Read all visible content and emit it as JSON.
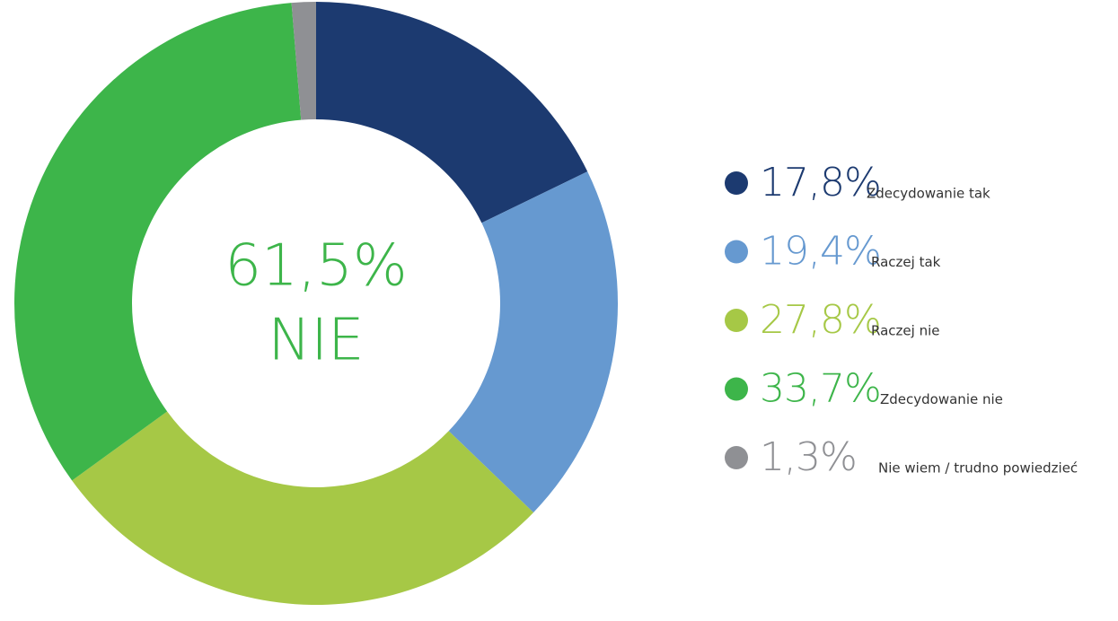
{
  "chart_data": {
    "type": "donut",
    "center_value_label": "61,5%",
    "center_label": "NIE",
    "categories": [
      "Zdecydowanie tak",
      "Raczej tak",
      "Raczej nie",
      "Zdecydowanie nie",
      "Nie wiem / trudno powiedzieć"
    ],
    "values": [
      17.8,
      19.4,
      27.8,
      33.7,
      1.3
    ],
    "value_labels": [
      "17,8%",
      "19,4%",
      "27,8%",
      "33,7%",
      "1,3%"
    ],
    "colors": [
      "#1c3a70",
      "#6699d0",
      "#a6c846",
      "#3db54a",
      "#8f9094"
    ],
    "legend": "right"
  }
}
